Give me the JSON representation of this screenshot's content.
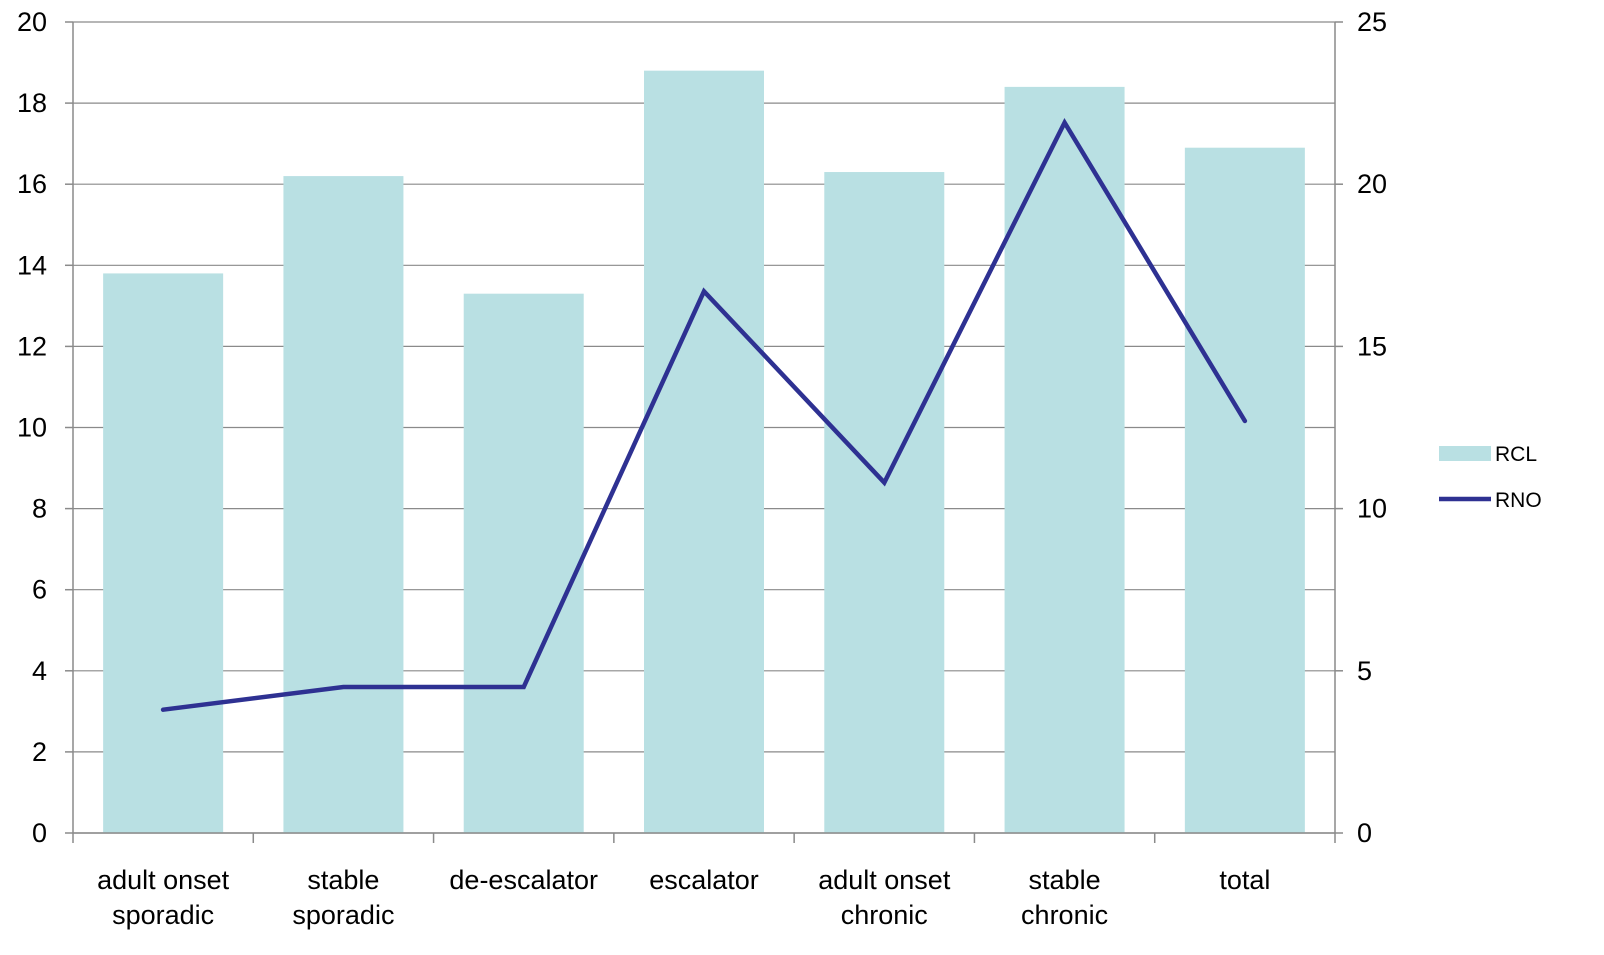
{
  "chart_data": {
    "type": "bar",
    "categories": [
      [
        "adult onset",
        "sporadic"
      ],
      [
        "stable",
        "sporadic"
      ],
      [
        "de-escalator"
      ],
      [
        "escalator"
      ],
      [
        "adult onset",
        "chronic"
      ],
      [
        "stable",
        "chronic"
      ],
      [
        "total"
      ]
    ],
    "series": [
      {
        "name": "RCL",
        "type": "bar",
        "axis": "left",
        "color": "#b9e0e3",
        "values": [
          13.8,
          16.2,
          13.3,
          18.8,
          16.3,
          18.4,
          16.9
        ]
      },
      {
        "name": "RNO",
        "type": "line",
        "axis": "right",
        "color": "#2e3192",
        "values": [
          3.8,
          4.5,
          4.5,
          16.7,
          10.8,
          21.9,
          12.7
        ]
      }
    ],
    "y_left": {
      "min": 0,
      "max": 20,
      "step": 2
    },
    "y_right": {
      "min": 0,
      "max": 25,
      "step": 5
    },
    "grid": true,
    "legend_position": "right"
  }
}
